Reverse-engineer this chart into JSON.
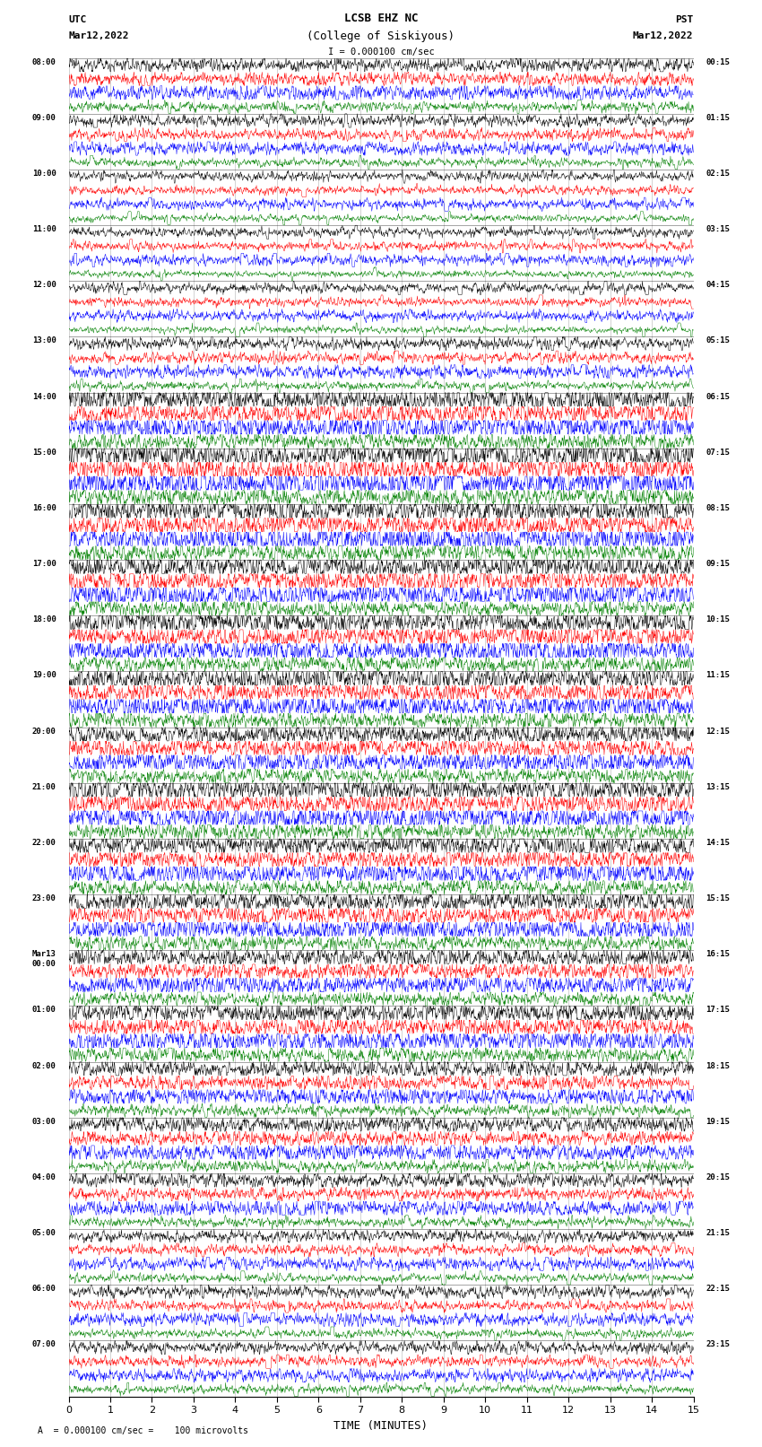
{
  "title_line1": "LCSB EHZ NC",
  "title_line2": "(College of Siskiyous)",
  "scale_text": "I = 0.000100 cm/sec",
  "left_header": "UTC",
  "left_subheader": "Mar12,2022",
  "right_header": "PST",
  "right_subheader": "Mar12,2022",
  "bottom_note": "A  = 0.000100 cm/sec =    100 microvolts",
  "xlabel": "TIME (MINUTES)",
  "time_minutes": 15,
  "n_row_groups": 24,
  "colors": [
    "black",
    "red",
    "blue",
    "green"
  ],
  "bg_color": "#ffffff",
  "figwidth": 8.5,
  "figheight": 16.13,
  "dpi": 100,
  "row_labels_utc": [
    "08:00",
    "09:00",
    "10:00",
    "11:00",
    "12:00",
    "13:00",
    "14:00",
    "15:00",
    "16:00",
    "17:00",
    "18:00",
    "19:00",
    "20:00",
    "21:00",
    "22:00",
    "23:00",
    "Mar13\n00:00",
    "01:00",
    "02:00",
    "03:00",
    "04:00",
    "05:00",
    "06:00",
    "07:00"
  ],
  "row_labels_pst": [
    "00:15",
    "01:15",
    "02:15",
    "03:15",
    "04:15",
    "05:15",
    "06:15",
    "07:15",
    "08:15",
    "09:15",
    "10:15",
    "11:15",
    "12:15",
    "13:15",
    "14:15",
    "15:15",
    "16:15",
    "17:15",
    "18:15",
    "19:15",
    "20:15",
    "21:15",
    "22:15",
    "23:15"
  ]
}
